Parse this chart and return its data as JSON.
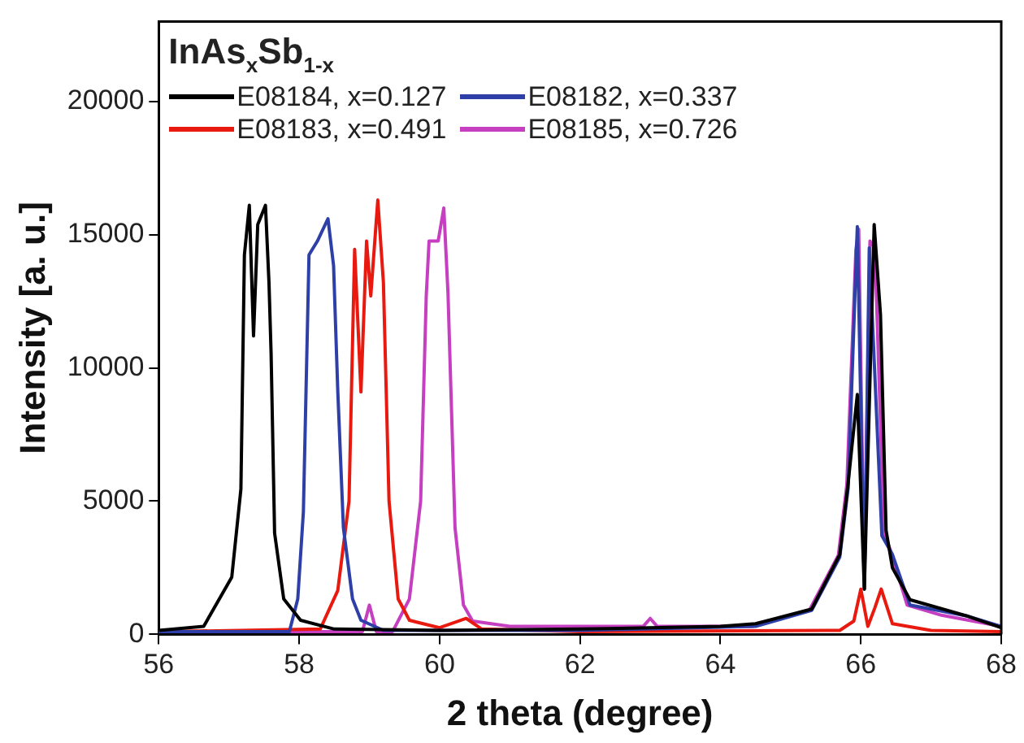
{
  "chart_data": {
    "type": "line",
    "xlabel": "2 theta (degree)",
    "ylabel": "Intensity [a. u.]",
    "legend_title": "InAs$_{x}$Sb$_{1-x}$",
    "legend": "top left",
    "grid": false,
    "marker": "none",
    "line_style": "solid",
    "xlim": [
      56,
      68
    ],
    "xticks": [
      56,
      58,
      60,
      62,
      64,
      66,
      68
    ],
    "ylim": [
      0,
      23000
    ],
    "yticks": [
      0,
      5000,
      10000,
      15000,
      20000
    ],
    "series": [
      {
        "name": "E08184, x=0.127",
        "color": "#000000",
        "x": [
          56,
          56.64,
          57.04,
          57.17,
          57.22,
          57.29,
          57.35,
          57.41,
          57.52,
          57.57,
          57.6,
          57.65,
          57.78,
          58.02,
          58.5,
          60,
          62,
          64,
          64.5,
          65.3,
          65.7,
          65.82,
          65.95,
          66.05,
          66.19,
          66.28,
          66.36,
          66.45,
          66.7,
          67.5,
          68
        ],
        "values": [
          150,
          300,
          2150,
          5450,
          14240,
          16100,
          11200,
          15380,
          16100,
          13200,
          10560,
          3800,
          1330,
          530,
          200,
          150,
          200,
          300,
          400,
          950,
          3000,
          5700,
          9000,
          1700,
          15380,
          12000,
          3900,
          2500,
          1300,
          700,
          250
        ]
      },
      {
        "name": "E08182, x=0.337",
        "color": "#2e3fa8",
        "x": [
          56,
          57.86,
          57.98,
          58.06,
          58.14,
          58.26,
          58.41,
          58.49,
          58.55,
          58.63,
          58.76,
          58.88,
          59.2,
          62,
          64.5,
          65.3,
          65.7,
          65.82,
          65.95,
          66.05,
          66.12,
          66.3,
          66.45,
          66.7,
          67.5,
          68
        ],
        "values": [
          100,
          100,
          1330,
          4600,
          14240,
          14760,
          15600,
          13840,
          9130,
          4000,
          1330,
          530,
          150,
          150,
          300,
          900,
          2900,
          5500,
          15300,
          1700,
          14500,
          3700,
          3000,
          1100,
          700,
          300
        ]
      },
      {
        "name": "E08183, x=0.491",
        "color": "#e8190f",
        "x": [
          56,
          58.3,
          58.55,
          58.71,
          58.79,
          58.88,
          58.96,
          59.02,
          59.12,
          59.2,
          59.28,
          59.41,
          59.57,
          60,
          60.38,
          60.6,
          62,
          65.7,
          65.9,
          66,
          66.1,
          66.2,
          66.29,
          66.45,
          67,
          68
        ],
        "values": [
          100,
          200,
          1650,
          5000,
          14450,
          9100,
          14760,
          12700,
          16300,
          13200,
          5000,
          1330,
          530,
          250,
          600,
          200,
          100,
          150,
          500,
          1700,
          300,
          1000,
          1700,
          400,
          150,
          100
        ]
      },
      {
        "name": "E08185, x=0.726",
        "color": "#c63fc0",
        "x": [
          56,
          58.9,
          59.0,
          59.1,
          59.33,
          59.57,
          59.73,
          59.81,
          59.85,
          59.98,
          60.06,
          60.12,
          60.22,
          60.34,
          60.47,
          61,
          62.9,
          63.0,
          63.1,
          64.46,
          65.27,
          65.68,
          65.8,
          65.93,
          65.97,
          66.05,
          66.13,
          66.2,
          66.33,
          66.42,
          66.66,
          67.15,
          68
        ],
        "values": [
          100,
          100,
          1100,
          100,
          100,
          1330,
          5000,
          12700,
          14760,
          14760,
          16000,
          12800,
          4000,
          1100,
          500,
          300,
          300,
          600,
          300,
          300,
          920,
          2970,
          5600,
          14450,
          15200,
          1740,
          14760,
          14500,
          3800,
          3170,
          1100,
          720,
          300
        ]
      }
    ]
  }
}
